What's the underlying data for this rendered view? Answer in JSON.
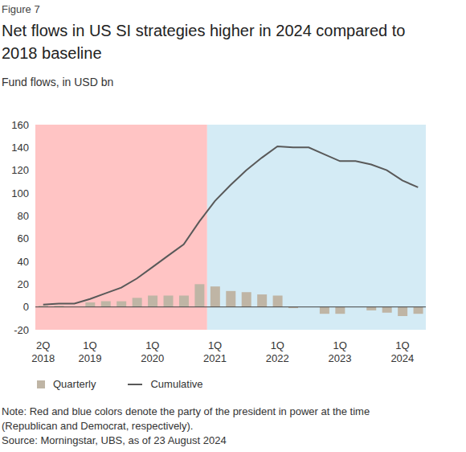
{
  "figure_label": "Figure 7",
  "chart_data": {
    "type": "bar+line",
    "title": "Net flows in US SI strategies higher in 2024 compared to 2018 baseline",
    "subtitle": "Fund flows, in USD bn",
    "categories": [
      "2Q 2018",
      null,
      null,
      "1Q 2019",
      null,
      null,
      null,
      "1Q 2020",
      null,
      null,
      null,
      "1Q 2021",
      null,
      null,
      null,
      "1Q 2022",
      null,
      null,
      null,
      "1Q 2023",
      null,
      null,
      null,
      "1Q 2024",
      null
    ],
    "series": [
      {
        "name": "Quarterly",
        "type": "bar",
        "color": "#bfb5a5",
        "values": [
          1,
          1,
          0,
          4,
          5,
          5,
          8,
          10,
          10,
          10,
          20,
          18,
          14,
          13,
          11,
          10,
          -1,
          0,
          -6,
          -6,
          0,
          -3,
          -5,
          -8,
          -6
        ]
      },
      {
        "name": "Cumulative",
        "type": "line",
        "color": "#595959",
        "values": [
          2,
          3,
          3,
          7,
          12,
          17,
          25,
          35,
          45,
          55,
          75,
          93,
          107,
          120,
          131,
          141,
          140,
          140,
          134,
          128,
          128,
          125,
          120,
          111,
          105
        ]
      }
    ],
    "ylim": [
      -20,
      160
    ],
    "yticks": [
      -20,
      0,
      20,
      40,
      60,
      80,
      100,
      120,
      140,
      160
    ],
    "grid": false,
    "periods": [
      {
        "color": "#ffc4c4",
        "from": 0,
        "to": 10
      },
      {
        "color": "#d4ebf5",
        "from": 11,
        "to": 24
      }
    ],
    "note": "Note: Red and blue colors denote the party of the president in power at the time (Republican and Democrat, respectively).",
    "source": "Source: Morningstar, UBS, as of 23 August 2024"
  }
}
